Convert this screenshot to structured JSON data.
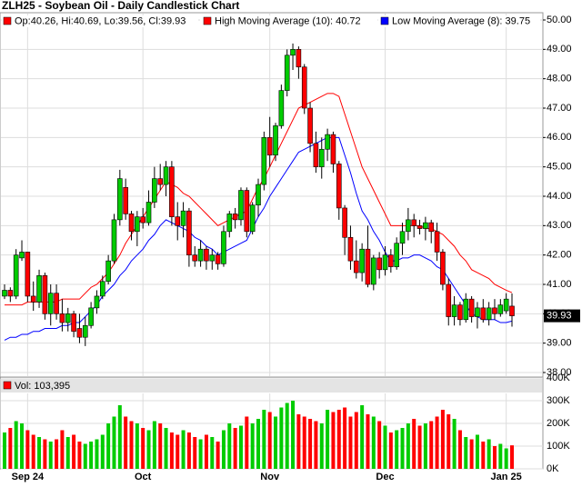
{
  "chart_data": {
    "type": "candlestick",
    "title": "ZLH25 - Soybean Oil - Daily Candlestick Chart",
    "ohlc_label": "Op:40.26, Hi:40.69, Lo:39.56, Cl:39.93",
    "up_color": "#00cc00",
    "down_color": "#ff0000",
    "categories": [
      null,
      null,
      null,
      null,
      "Sep 24",
      null,
      null,
      null,
      null,
      null,
      null,
      null,
      null,
      null,
      null,
      null,
      null,
      null,
      null,
      null,
      null,
      null,
      null,
      null,
      "Oct",
      null,
      null,
      null,
      null,
      null,
      null,
      null,
      null,
      null,
      null,
      null,
      null,
      null,
      null,
      null,
      null,
      null,
      null,
      null,
      null,
      null,
      "Nov",
      null,
      null,
      null,
      null,
      null,
      null,
      null,
      null,
      null,
      null,
      null,
      null,
      null,
      null,
      null,
      null,
      null,
      null,
      null,
      "Dec",
      null,
      null,
      null,
      null,
      null,
      null,
      null,
      null,
      null,
      null,
      null,
      null,
      null,
      null,
      null,
      null,
      null,
      null,
      null,
      null,
      "Jan 25",
      null
    ],
    "open": [
      40.6,
      40.8,
      40.6,
      41.9,
      42.1,
      40.6,
      40.4,
      41.3,
      40.0,
      40.7,
      40.0,
      39.7,
      40.0,
      39.5,
      39.2,
      39.6,
      40.2,
      40.6,
      41.1,
      41.8,
      43.2,
      44.3,
      43.4,
      42.8,
      43.3,
      43.1,
      43.8,
      44.6,
      44.4,
      45.0,
      43.3,
      43.0,
      43.5,
      42.0,
      41.8,
      42.2,
      41.8,
      42.0,
      41.7,
      42.8,
      43.4,
      43.2,
      44.2,
      42.8,
      43.7,
      44.4,
      46.0,
      45.4,
      46.4,
      47.6,
      48.8,
      49.0,
      48.4,
      47.0,
      45.8,
      45.0,
      45.6,
      46.1,
      45.1,
      43.6,
      42.6,
      41.8,
      41.4,
      42.2,
      41.0,
      41.9,
      41.5,
      42.0,
      41.6,
      42.4,
      42.8,
      43.2,
      43.0,
      42.9,
      43.1,
      42.8,
      42.1,
      41.0,
      39.9,
      40.3,
      39.8,
      40.5,
      39.9,
      40.2,
      39.8,
      40.2,
      40.0,
      40.1,
      40.26
    ],
    "high": [
      41.0,
      40.9,
      42.2,
      42.5,
      42.1,
      41.1,
      41.5,
      41.4,
      41.0,
      41.0,
      40.5,
      40.2,
      40.1,
      40.0,
      39.9,
      40.4,
      40.8,
      41.3,
      42.0,
      43.4,
      44.9,
      44.6,
      43.5,
      43.5,
      43.6,
      44.2,
      45.0,
      45.1,
      45.2,
      45.2,
      43.8,
      43.8,
      43.6,
      42.3,
      42.5,
      42.3,
      42.2,
      42.1,
      43.0,
      43.5,
      43.6,
      44.3,
      44.3,
      43.8,
      44.6,
      46.2,
      46.7,
      46.5,
      47.8,
      49.0,
      49.2,
      49.1,
      48.5,
      47.2,
      46.2,
      46.0,
      46.3,
      46.2,
      45.2,
      43.7,
      43.0,
      42.5,
      42.4,
      43.0,
      42.0,
      42.1,
      42.3,
      42.2,
      42.6,
      43.1,
      43.6,
      43.4,
      43.2,
      43.3,
      43.2,
      43.1,
      42.2,
      41.2,
      40.6,
      40.4,
      40.7,
      40.6,
      40.4,
      40.5,
      40.4,
      40.5,
      40.5,
      40.7,
      40.69
    ],
    "low": [
      40.5,
      40.4,
      40.5,
      41.8,
      40.4,
      40.1,
      40.2,
      39.8,
      39.6,
      39.8,
      39.4,
      39.4,
      39.2,
      39.0,
      38.9,
      39.5,
      40.0,
      40.5,
      41.0,
      41.7,
      43.0,
      43.2,
      42.5,
      42.3,
      42.9,
      43.0,
      43.6,
      44.2,
      44.0,
      43.0,
      42.5,
      42.6,
      41.6,
      41.6,
      41.6,
      41.5,
      41.5,
      41.5,
      41.6,
      42.6,
      42.9,
      43.0,
      42.6,
      42.7,
      43.3,
      44.2,
      45.0,
      45.2,
      46.3,
      47.4,
      48.3,
      48.0,
      46.8,
      45.5,
      44.8,
      44.6,
      45.2,
      44.8,
      43.2,
      42.0,
      41.5,
      41.2,
      41.1,
      40.9,
      40.8,
      41.2,
      41.3,
      41.4,
      41.5,
      42.0,
      42.5,
      42.6,
      42.7,
      42.5,
      42.4,
      41.8,
      40.8,
      39.6,
      39.6,
      39.6,
      39.7,
      39.7,
      39.5,
      39.7,
      39.6,
      39.8,
      39.9,
      40.0,
      39.56
    ],
    "close": [
      40.8,
      40.6,
      42.0,
      42.1,
      40.6,
      40.4,
      41.3,
      40.0,
      40.7,
      40.0,
      39.7,
      40.0,
      39.4,
      39.2,
      39.6,
      40.2,
      40.6,
      41.1,
      41.8,
      43.2,
      44.6,
      43.4,
      42.8,
      43.3,
      43.1,
      43.8,
      44.6,
      44.4,
      45.0,
      43.3,
      43.0,
      43.5,
      42.0,
      41.8,
      42.2,
      41.8,
      42.0,
      41.7,
      42.8,
      43.4,
      43.2,
      44.2,
      42.8,
      43.7,
      44.4,
      46.0,
      45.4,
      46.4,
      47.6,
      48.8,
      49.0,
      48.4,
      47.0,
      45.8,
      45.0,
      45.6,
      46.1,
      45.1,
      43.6,
      42.6,
      41.8,
      41.4,
      42.2,
      41.0,
      41.9,
      41.5,
      42.0,
      41.6,
      42.4,
      42.8,
      43.2,
      43.0,
      42.9,
      43.1,
      42.8,
      42.1,
      41.0,
      39.9,
      40.3,
      39.8,
      40.5,
      39.9,
      40.2,
      39.8,
      40.2,
      40.0,
      40.3,
      40.5,
      39.93
    ],
    "series": [
      {
        "name": "High Moving Average (10): 40.72",
        "color": "#ff0000",
        "values": [
          40.3,
          40.3,
          40.3,
          40.3,
          40.4,
          40.4,
          40.4,
          40.4,
          40.4,
          40.4,
          40.5,
          40.5,
          40.5,
          40.5,
          40.7,
          40.9,
          41.0,
          41.2,
          41.4,
          41.7,
          42.0,
          42.4,
          42.7,
          43.0,
          43.3,
          43.6,
          43.9,
          44.2,
          44.5,
          44.4,
          44.3,
          44.1,
          44.0,
          43.8,
          43.6,
          43.4,
          43.2,
          43.0,
          43.1,
          43.2,
          43.3,
          43.4,
          43.5,
          43.9,
          44.3,
          44.6,
          45.0,
          45.4,
          45.8,
          46.2,
          46.6,
          47.0,
          47.1,
          47.2,
          47.3,
          47.4,
          47.5,
          47.5,
          47.4,
          46.8,
          46.2,
          45.6,
          45.0,
          44.6,
          44.2,
          43.8,
          43.4,
          43.0,
          43.0,
          43.0,
          43.0,
          43.0,
          43.0,
          42.9,
          42.9,
          42.8,
          42.7,
          42.5,
          42.3,
          42.0,
          41.8,
          41.5,
          41.4,
          41.3,
          41.2,
          41.0,
          40.9,
          40.8,
          40.72
        ]
      },
      {
        "name": "Low Moving Average (8): 39.75",
        "color": "#0000ff",
        "values": [
          39.1,
          39.2,
          39.2,
          39.3,
          39.3,
          39.4,
          39.4,
          39.5,
          39.5,
          39.5,
          39.6,
          39.6,
          39.7,
          39.7,
          39.9,
          40.1,
          40.3,
          40.6,
          40.8,
          41.0,
          41.3,
          41.5,
          41.8,
          42.0,
          42.2,
          42.5,
          42.7,
          43.0,
          43.2,
          43.1,
          43.0,
          42.9,
          42.8,
          42.6,
          42.5,
          42.3,
          42.2,
          42.0,
          42.1,
          42.2,
          42.3,
          42.4,
          42.5,
          42.9,
          43.3,
          43.6,
          44.0,
          44.3,
          44.6,
          44.9,
          45.2,
          45.5,
          45.6,
          45.7,
          45.8,
          45.9,
          46.0,
          46.0,
          46.0,
          45.4,
          44.8,
          44.1,
          43.5,
          43.2,
          42.8,
          42.5,
          42.1,
          41.8,
          41.8,
          41.9,
          41.9,
          42.0,
          42.0,
          41.9,
          41.8,
          41.6,
          41.5,
          41.2,
          40.9,
          40.6,
          40.3,
          40.0,
          39.9,
          39.8,
          39.8,
          39.8,
          39.7,
          39.7,
          39.75
        ]
      }
    ],
    "ylim": [
      38,
      50
    ],
    "yticks": [
      {
        "value": 38,
        "label": "38.00"
      },
      {
        "value": 39,
        "label": "39.00"
      },
      {
        "value": 40,
        "label": "40.00"
      },
      {
        "value": 41,
        "label": "41.00"
      },
      {
        "value": 42,
        "label": "42.00"
      },
      {
        "value": 43,
        "label": "43.00"
      },
      {
        "value": 44,
        "label": "44.00"
      },
      {
        "value": 45,
        "label": "45.00"
      },
      {
        "value": 46,
        "label": "46.00"
      },
      {
        "value": 47,
        "label": "47.00"
      },
      {
        "value": 48,
        "label": "48.00"
      },
      {
        "value": 49,
        "label": "49.00"
      },
      {
        "value": 50,
        "label": "50.00"
      }
    ],
    "grid": true,
    "volume": {
      "label": "Vol: 103,395",
      "values": [
        160000,
        180000,
        210000,
        200000,
        170000,
        150000,
        140000,
        130000,
        120000,
        130000,
        170000,
        140000,
        150000,
        120000,
        110000,
        120000,
        130000,
        150000,
        200000,
        230000,
        280000,
        230000,
        210000,
        200000,
        180000,
        170000,
        210000,
        200000,
        180000,
        160000,
        150000,
        170000,
        160000,
        140000,
        130000,
        150000,
        140000,
        120000,
        170000,
        200000,
        180000,
        190000,
        230000,
        200000,
        220000,
        260000,
        250000,
        230000,
        270000,
        290000,
        300000,
        240000,
        230000,
        220000,
        210000,
        200000,
        260000,
        250000,
        260000,
        270000,
        230000,
        250000,
        280000,
        240000,
        230000,
        210000,
        190000,
        160000,
        170000,
        180000,
        200000,
        220000,
        190000,
        200000,
        210000,
        230000,
        260000,
        240000,
        220000,
        170000,
        140000,
        130000,
        150000,
        120000,
        130000,
        100000,
        110000,
        90000,
        103395
      ],
      "ylim": [
        0,
        400000
      ],
      "yticks": [
        {
          "value": 0,
          "label": "0K"
        },
        {
          "value": 100000,
          "label": "100K"
        },
        {
          "value": 200000,
          "label": "200K"
        },
        {
          "value": 300000,
          "label": "300K"
        },
        {
          "value": 400000,
          "label": "400K"
        }
      ]
    }
  }
}
